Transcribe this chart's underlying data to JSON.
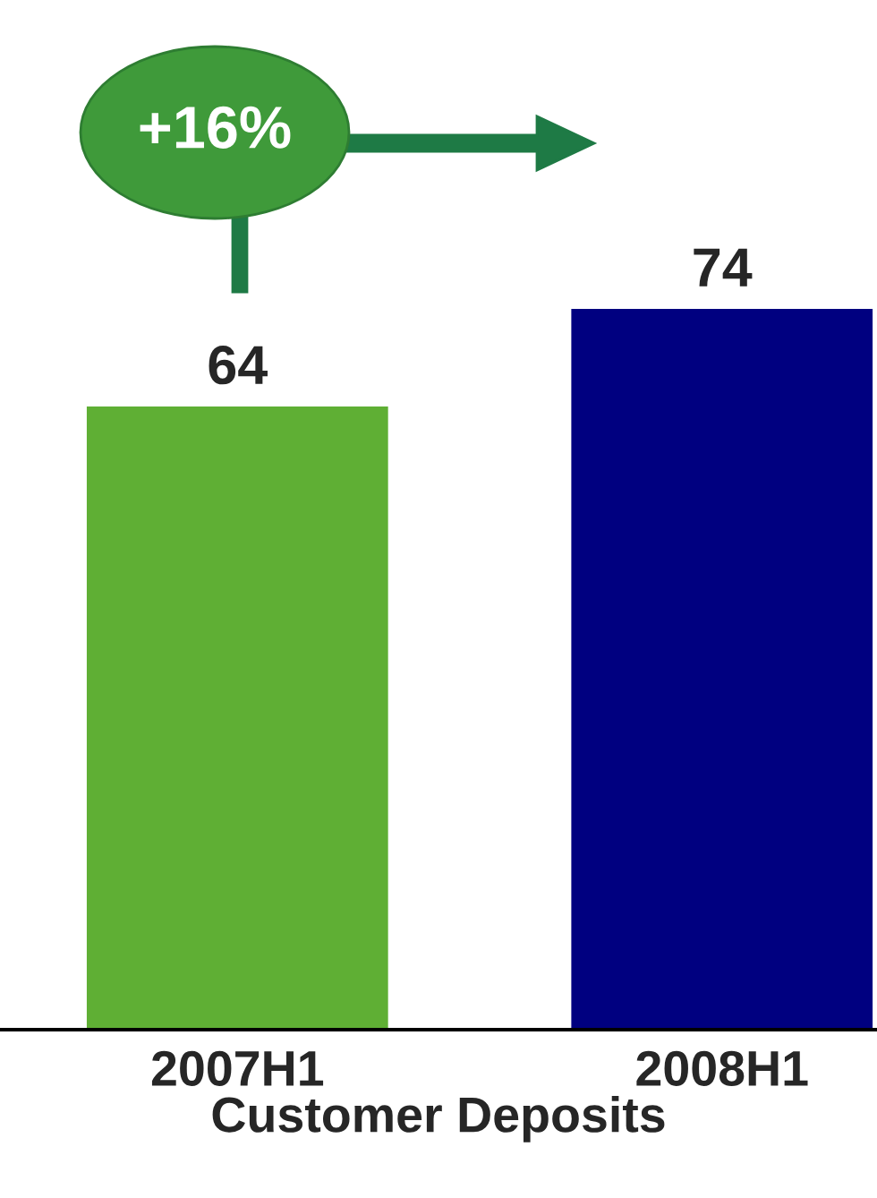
{
  "chart_data": {
    "type": "bar",
    "xlabel": "Customer Deposits",
    "categories": [
      "2007H1",
      "2008H1"
    ],
    "values": [
      64,
      74
    ],
    "colors": [
      "#5faf34",
      "#000080"
    ],
    "data_labels": true,
    "grid": false,
    "legend": false,
    "annotations": [
      "+16%"
    ]
  }
}
